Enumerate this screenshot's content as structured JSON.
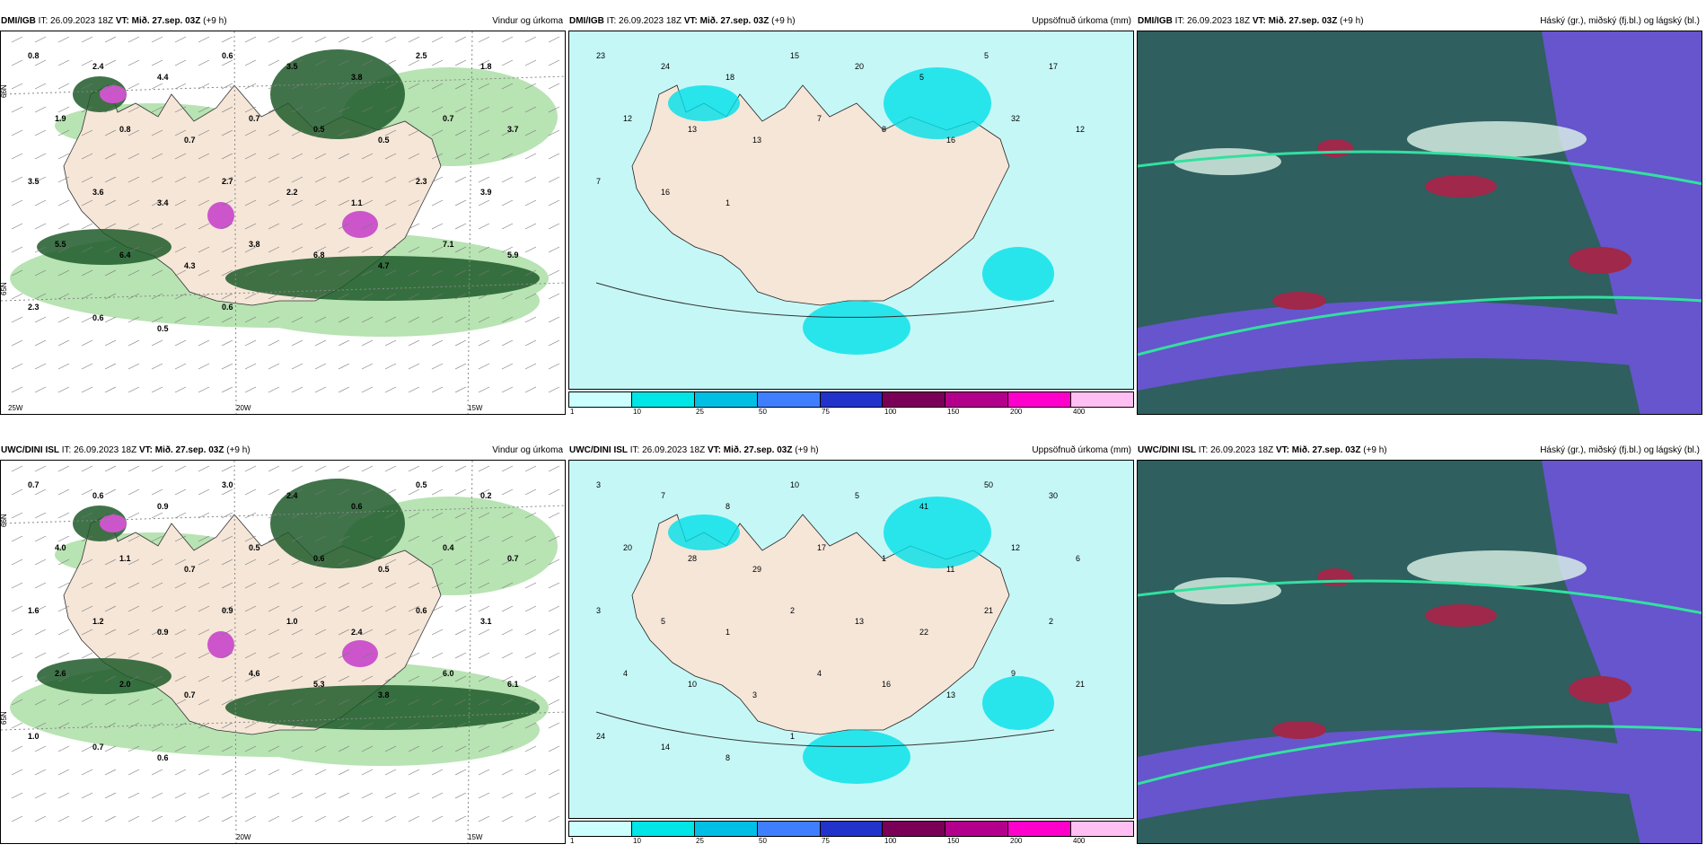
{
  "panels": [
    {
      "source": "DMI/IGB",
      "run": "IT: 26.09.2023 18Z",
      "vt_label": "VT:",
      "vt": "Mið. 27.sep. 03Z",
      "lead": "(+9 h)",
      "title": "Vindur og úrkoma",
      "labels": [
        "0.8",
        "2.4",
        "4.4",
        "0.6",
        "3.5",
        "3.8",
        "2.5",
        "1.8",
        "1.9",
        "0.8",
        "0.7",
        "0.7",
        "0.5",
        "0.5",
        "0.7",
        "3.7",
        "3.5",
        "3.6",
        "3.4",
        "2.7",
        "2.2",
        "1.1",
        "2.3",
        "3.9",
        "5.5",
        "6.4",
        "4.3",
        "3.8",
        "6.8",
        "4.7",
        "7.1",
        "5.9",
        "2.3",
        "0.6",
        "0.5",
        "0.6"
      ],
      "lat": [
        "66N",
        "65N"
      ],
      "lon": [
        "20W",
        "15W",
        "25W"
      ]
    },
    {
      "source": "DMI/IGB",
      "run": "IT: 26.09.2023 18Z",
      "vt_label": "VT:",
      "vt": "Mið. 27.sep. 03Z",
      "lead": "(+9 h)",
      "title": "Uppsöfnuð úrkoma (mm)",
      "labels": [
        "23",
        "24",
        "18",
        "15",
        "20",
        "5",
        "5",
        "17",
        "12",
        "13",
        "13",
        "7",
        "8",
        "16",
        "32",
        "12",
        "7",
        "16",
        "1"
      ]
    },
    {
      "source": "DMI/IGB",
      "run": "IT: 26.09.2023 18Z",
      "vt_label": "VT:",
      "vt": "Mið. 27.sep. 03Z",
      "lead": "(+9 h)",
      "title": "Háský (gr.), miðský (fj.bl.) og lágský (bl.)"
    },
    {
      "source": "UWC/DINI ISL",
      "run": "IT: 26.09.2023 18Z",
      "vt_label": "VT:",
      "vt": "Mið. 27.sep. 03Z",
      "lead": "(+9 h)",
      "title": "Vindur og úrkoma",
      "labels": [
        "0.7",
        "0.6",
        "0.9",
        "3.0",
        "2.4",
        "0.6",
        "0.5",
        "0.2",
        "4.0",
        "1.1",
        "0.7",
        "0.5",
        "0.6",
        "0.5",
        "0.4",
        "0.7",
        "1.6",
        "1.2",
        "0.9",
        "0.9",
        "1.0",
        "2.4",
        "0.6",
        "3.1",
        "2.6",
        "2.0",
        "0.7",
        "4.6",
        "5.3",
        "3.8",
        "6.0",
        "6.1",
        "1.0",
        "0.7",
        "0.6"
      ],
      "lat": [
        "66N",
        "65N"
      ],
      "lon": [
        "20W",
        "15W"
      ]
    },
    {
      "source": "UWC/DINI ISL",
      "run": "IT: 26.09.2023 18Z",
      "vt_label": "VT:",
      "vt": "Mið. 27.sep. 03Z",
      "lead": "(+9 h)",
      "title": "Uppsöfnuð úrkoma (mm)",
      "labels": [
        "3",
        "7",
        "8",
        "10",
        "5",
        "41",
        "50",
        "30",
        "20",
        "28",
        "29",
        "17",
        "1",
        "11",
        "12",
        "6",
        "3",
        "5",
        "1",
        "2",
        "13",
        "22",
        "21",
        "2",
        "4",
        "10",
        "3",
        "4",
        "16",
        "13",
        "9",
        "21",
        "24",
        "14",
        "8",
        "1"
      ]
    },
    {
      "source": "UWC/DINI ISL",
      "run": "IT: 26.09.2023 18Z",
      "vt_label": "VT:",
      "vt": "Mið. 27.sep. 03Z",
      "lead": "(+9 h)",
      "title": "Háský (gr.), miðský (fj.bl.) og lágský (bl.)"
    }
  ],
  "colorbar": {
    "colors": [
      "#ccffff",
      "#00e5e5",
      "#00bfe5",
      "#3f7fff",
      "#2233cc",
      "#7a0057",
      "#b3008c",
      "#ff00cc",
      "#ffbff2"
    ],
    "ticks": [
      "1",
      "10",
      "25",
      "50",
      "75",
      "100",
      "150",
      "200",
      "400"
    ]
  },
  "colors": {
    "land": "#f5e6d8",
    "sea_precip": "#c6f7f7",
    "green": "#1e5a2a",
    "cloud_base": "#2f5f5f",
    "purple": "#6655cc",
    "red": "#a0284a"
  }
}
